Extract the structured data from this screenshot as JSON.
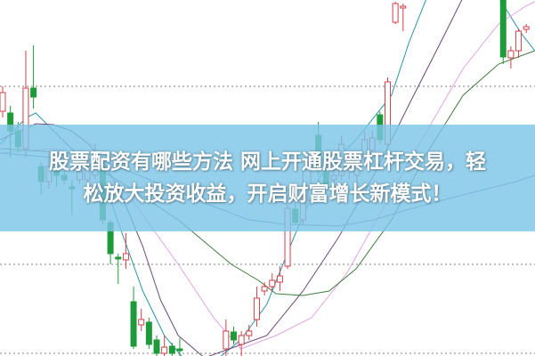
{
  "banner": {
    "line1": "股票配资有哪些方法 网上开通股票杠杆交易，轻",
    "line2": "松放大投资收益，开启财富增长新模式！"
  },
  "chart_data": {
    "type": "candlestick",
    "title": "",
    "xlabel": "",
    "ylabel": "",
    "axes_visible": false,
    "grid": true,
    "grid_style": "dotted horizontal",
    "grid_values": [
      30,
      10,
      0
    ],
    "ylim": [
      -0.5,
      40
    ],
    "colors": {
      "up": "#d0404a",
      "down": "#1f9a3a",
      "grid": "#999999",
      "banner": "#7dc4e6"
    },
    "candles_ohlc": [
      [
        27.2,
        30,
        26.5,
        29.3
      ],
      [
        27,
        27.8,
        22,
        25
      ],
      [
        25,
        26,
        22.5,
        23.2
      ],
      [
        23,
        34,
        22,
        29.8
      ],
      [
        29.8,
        34.6,
        27.5,
        28.8
      ],
      [
        21,
        21.5,
        17.8,
        19.3
      ],
      [
        19.3,
        22.5,
        18.5,
        21
      ],
      [
        20.7,
        21.7,
        18.7,
        20
      ],
      [
        20,
        20.5,
        19,
        19.5
      ],
      [
        18.7,
        19.5,
        15.5,
        18.5
      ],
      [
        19.5,
        21.5,
        19,
        20.5
      ],
      [
        19.5,
        22.5,
        19,
        21
      ],
      [
        20,
        23.5,
        19.5,
        21.5
      ],
      [
        21,
        21.5,
        14.5,
        15
      ],
      [
        14.7,
        15,
        10,
        11.2
      ],
      [
        10.8,
        11.2,
        7.8,
        10.6
      ],
      [
        10.5,
        13.5,
        9.5,
        11.2
      ],
      [
        5.8,
        7.5,
        0.5,
        0.8
      ],
      [
        3.2,
        5,
        2.5,
        3.8
      ],
      [
        3.5,
        4,
        0.5,
        1
      ],
      [
        1.5,
        2,
        -0.5,
        0
      ],
      [
        0,
        2,
        -0.5,
        0.7
      ],
      [
        0.8,
        1.2,
        -0.5,
        0
      ],
      [
        0.5,
        1.7,
        -0.5,
        0.3
      ],
      null,
      null,
      null,
      null,
      null,
      [
        0.5,
        3.8,
        -0.5,
        2.5
      ],
      [
        2.4,
        3,
        1,
        1.5
      ],
      [
        1,
        2.5,
        -0.5,
        2
      ],
      [
        2,
        3.2,
        1.5,
        2.5
      ],
      [
        3.8,
        7.5,
        3,
        6.2
      ],
      [
        7,
        8,
        6.5,
        7.5
      ],
      [
        7.5,
        9,
        7,
        8.2
      ],
      [
        8,
        9.8,
        7,
        8.7
      ],
      [
        9.8,
        16.8,
        9.5,
        16.3
      ],
      [
        16.2,
        17,
        14.5,
        14.7
      ],
      [
        15,
        20.5,
        14.5,
        17
      ],
      [
        17.2,
        20.5,
        16.5,
        18.5
      ],
      [
        24.5,
        26,
        20,
        21
      ],
      [
        20.3,
        21,
        18.5,
        19
      ],
      [
        19.5,
        21,
        19,
        20
      ],
      [
        20,
        24.5,
        19.5,
        23.5
      ],
      [
        21,
        22.5,
        19.5,
        22
      ],
      [
        20,
        22.5,
        19,
        22
      ],
      [
        22.2,
        25,
        21.5,
        24
      ],
      [
        22.8,
        25,
        22,
        24.2
      ],
      [
        26.8,
        27.2,
        23.5,
        24
      ],
      [
        23.5,
        31,
        23,
        30.5
      ],
      [
        37.2,
        39.5,
        37,
        39.3
      ],
      [
        38.8,
        39.3,
        36.2,
        39
      ],
      null,
      null,
      null,
      null,
      null,
      null,
      null,
      null,
      null,
      null,
      null,
      null,
      [
        40.5,
        40.5,
        32.5,
        33.3
      ],
      [
        33.2,
        34.5,
        32,
        34
      ],
      [
        34,
        36.5,
        33.2,
        36.2
      ],
      [
        36.4,
        37,
        36,
        36.7
      ]
    ],
    "moving_averages": [
      {
        "color": "#2a93a8",
        "points": [
          [
            -0.3,
            23.5
          ],
          [
            3.1,
            26.5
          ],
          [
            4.3,
            27
          ],
          [
            6.6,
            25
          ],
          [
            10.1,
            22
          ],
          [
            12.9,
            20
          ],
          [
            15.3,
            14
          ],
          [
            18.2,
            7
          ],
          [
            21,
            2
          ],
          [
            23.9,
            -1
          ],
          [
            27.4,
            -1
          ],
          [
            30.9,
            1.5
          ],
          [
            34.3,
            5.5
          ],
          [
            37.8,
            13
          ],
          [
            41.3,
            20
          ],
          [
            45.9,
            24
          ],
          [
            50.5,
            29
          ],
          [
            52.8,
            35
          ],
          [
            55.1,
            40
          ],
          null,
          [
            62.1,
            42
          ],
          [
            64.4,
            40
          ],
          [
            67.3,
            36
          ],
          [
            69.1,
            34
          ]
        ]
      },
      {
        "color": "#6b4a78",
        "points": [
          [
            -0.3,
            24
          ],
          [
            4.3,
            25.8
          ],
          [
            6.6,
            25.7
          ],
          [
            8.9,
            25
          ],
          [
            11.2,
            23.5
          ],
          [
            13.5,
            21
          ],
          [
            15.8,
            17
          ],
          [
            18.2,
            12
          ],
          [
            20.5,
            6
          ],
          [
            22.8,
            2
          ],
          [
            26.2,
            -0.5
          ],
          [
            34.3,
            2
          ],
          [
            39,
            7
          ],
          [
            43.6,
            13
          ],
          [
            48.2,
            20
          ],
          [
            52.8,
            28
          ],
          [
            57.5,
            36
          ],
          [
            59.8,
            40
          ]
        ]
      },
      {
        "color": "#e2a4e2",
        "points": [
          [
            -0.3,
            22.5
          ],
          [
            6.6,
            23
          ],
          [
            12.4,
            21.5
          ],
          [
            17,
            17
          ],
          [
            22.8,
            10
          ],
          [
            27.4,
            4
          ],
          [
            30.9,
            0.5
          ],
          [
            35.5,
            2
          ],
          [
            40.1,
            4
          ],
          [
            44.7,
            9
          ],
          [
            50.5,
            18
          ],
          [
            55.1,
            25
          ],
          [
            59.8,
            32
          ],
          [
            64.4,
            37
          ],
          [
            67.9,
            39
          ],
          [
            69.1,
            39.5
          ]
        ]
      },
      {
        "color": "#3f7d3f",
        "points": [
          [
            -0.3,
            23
          ],
          [
            8.9,
            22.5
          ],
          [
            15.8,
            19
          ],
          [
            22.8,
            15
          ],
          [
            29.7,
            10
          ],
          [
            33.2,
            8.2
          ],
          [
            35.5,
            6.7
          ],
          [
            39,
            6.5
          ],
          [
            42.4,
            7
          ],
          [
            45.9,
            9.5
          ],
          [
            50.5,
            15
          ],
          [
            55.1,
            22.5
          ],
          [
            59.8,
            29
          ],
          [
            64.4,
            32.5
          ],
          [
            69.1,
            34
          ]
        ]
      },
      {
        "color": "#5f84a6",
        "points": [
          [
            -0.3,
            22.5
          ],
          [
            6.6,
            22
          ],
          [
            13.5,
            21.5
          ],
          [
            20.5,
            19
          ],
          [
            27.4,
            16.5
          ],
          [
            32,
            15
          ],
          [
            36.6,
            14.5
          ],
          [
            43.6,
            14.3
          ],
          [
            48.2,
            15
          ],
          [
            52.8,
            16.2
          ],
          [
            59.8,
            17.8
          ],
          [
            66.7,
            19.3
          ],
          [
            69.1,
            20
          ]
        ]
      }
    ]
  }
}
